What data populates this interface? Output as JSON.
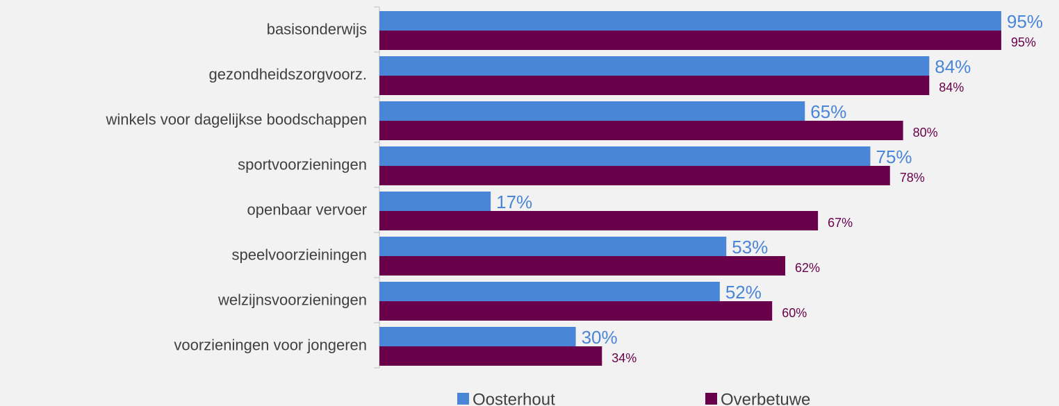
{
  "chart_data": {
    "type": "bar",
    "orientation": "horizontal",
    "categories": [
      "basisonderwijs",
      "gezondheidszorgvoorz.",
      "winkels voor dagelijkse boodschappen",
      "sportvoorzieningen",
      "openbaar vervoer",
      "speelvoorzieiningen",
      "welzijnsvoorzieningen",
      "voorzieningen voor jongeren"
    ],
    "series": [
      {
        "name": "Oosterhout",
        "color": "#4a86d8",
        "values": [
          95,
          84,
          65,
          75,
          17,
          53,
          52,
          30
        ],
        "value_labels": [
          "95%",
          "84%",
          "65%",
          "75%",
          "17%",
          "53%",
          "52%",
          "30%"
        ]
      },
      {
        "name": "Overbetuwe",
        "color": "#68004a",
        "values": [
          95,
          84,
          80,
          78,
          67,
          62,
          60,
          34
        ],
        "value_labels": [
          "95%",
          "84%",
          "80%",
          "78%",
          "67%",
          "62%",
          "60%",
          "34%"
        ]
      }
    ],
    "xlim": [
      0,
      100
    ],
    "legend": "bottom"
  }
}
